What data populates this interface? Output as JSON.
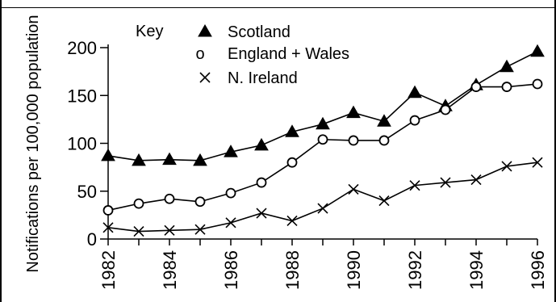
{
  "chart_data": {
    "type": "line",
    "ylabel": "Notifications per 100,000 population",
    "ylim": [
      0,
      200
    ],
    "yticks": [
      0,
      50,
      100,
      150,
      200
    ],
    "xlim": [
      1982,
      1996
    ],
    "xticks": [
      1982,
      1984,
      1986,
      1988,
      1990,
      1992,
      1994,
      1996
    ],
    "x": [
      1982,
      1983,
      1984,
      1985,
      1986,
      1987,
      1988,
      1989,
      1990,
      1991,
      1992,
      1993,
      1994,
      1995,
      1996
    ],
    "legend_title": "Key",
    "legend_position": "top-left",
    "series": [
      {
        "name": "Scotland",
        "marker": "filled-triangle",
        "values": [
          87,
          82,
          83,
          82,
          91,
          98,
          112,
          120,
          132,
          123,
          153,
          139,
          161,
          180,
          196
        ]
      },
      {
        "name": "England + Wales",
        "marker": "open-circle",
        "values": [
          30,
          37,
          42,
          39,
          48,
          59,
          80,
          104,
          103,
          103,
          124,
          135,
          159,
          159,
          162
        ]
      },
      {
        "name": "N. Ireland",
        "marker": "x-cross",
        "values": [
          12,
          8,
          9,
          10,
          17,
          27,
          19,
          32,
          52,
          40,
          56,
          59,
          62,
          76,
          80
        ]
      }
    ]
  }
}
